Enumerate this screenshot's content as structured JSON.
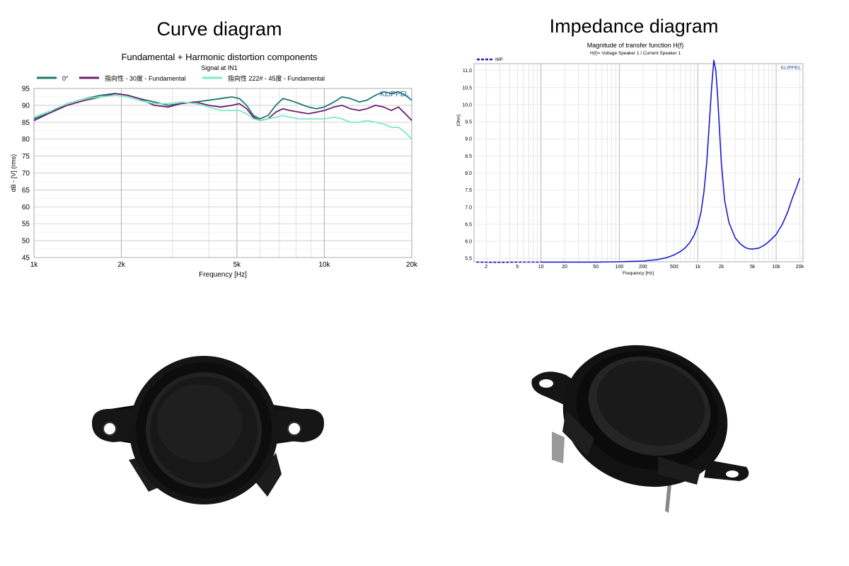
{
  "headings": {
    "left": "Curve diagram",
    "right": "Impedance diagram"
  },
  "chart_data": [
    {
      "type": "line",
      "title": "Fundamental + Harmonic distortion components",
      "subtitle": "Signal at IN1",
      "brand": "KLIPPEL",
      "xlabel": "Frequency [Hz]",
      "ylabel": "dB - [V] (rms)",
      "xscale": "log",
      "xlim": [
        1000,
        20000
      ],
      "ylim": [
        45,
        95
      ],
      "x_ticks": [
        1000,
        2000,
        5000,
        10000,
        20000
      ],
      "x_tick_labels": [
        "1k",
        "2k",
        "5k",
        "10k",
        "20k"
      ],
      "y_ticks": [
        45,
        50,
        55,
        60,
        65,
        70,
        75,
        80,
        85,
        90,
        95
      ],
      "y_tick_labels": [
        "45",
        "50",
        "55",
        "60",
        "65",
        "70",
        "75",
        "80",
        "85",
        "90",
        "95"
      ],
      "grid": true,
      "legend_position": "top",
      "series": [
        {
          "name": "0°",
          "color": "#1a7a6e",
          "x": [
            1000,
            1150,
            1300,
            1500,
            1700,
            1900,
            2100,
            2300,
            2600,
            2900,
            3200,
            3600,
            4000,
            4400,
            4800,
            5100,
            5400,
            5700,
            6000,
            6400,
            6800,
            7200,
            7600,
            8200,
            8800,
            9400,
            10000,
            10800,
            11500,
            12300,
            13200,
            14000,
            15000,
            16000,
            17000,
            18000,
            19000,
            20000
          ],
          "y": [
            86,
            88,
            90.5,
            92,
            93,
            93.5,
            93,
            92,
            91,
            90,
            90.5,
            91,
            91.5,
            92,
            92.5,
            92,
            90,
            87,
            86,
            87,
            90,
            92,
            91.5,
            90.5,
            89.5,
            89,
            89.5,
            91,
            92.5,
            92,
            91,
            91.5,
            93,
            94,
            93.5,
            94,
            93,
            91.5
          ]
        },
        {
          "name": "指向性 - 30度 - Fundamental",
          "color": "#6e1f70",
          "x": [
            1000,
            1150,
            1300,
            1500,
            1700,
            1900,
            2100,
            2300,
            2600,
            2900,
            3200,
            3600,
            4000,
            4400,
            4800,
            5100,
            5400,
            5700,
            6000,
            6400,
            6800,
            7200,
            7600,
            8200,
            8800,
            9400,
            10000,
            10800,
            11500,
            12300,
            13200,
            14000,
            15000,
            16000,
            17000,
            18000,
            19000,
            20000
          ],
          "y": [
            85.5,
            88,
            90,
            91.5,
            92.5,
            93.5,
            93,
            92,
            90,
            89.5,
            90.5,
            91,
            90,
            89.5,
            90,
            90.5,
            89,
            86.5,
            85.5,
            86,
            88,
            89,
            88.5,
            88,
            87.5,
            88,
            88.5,
            89.5,
            90,
            89,
            88.5,
            89,
            90,
            89.5,
            88.5,
            89.5,
            87.5,
            85.5
          ]
        },
        {
          "name": "指向性 222# - 45度 - Fundamental",
          "color": "#7fe8c8",
          "x": [
            1000,
            1150,
            1300,
            1500,
            1700,
            1900,
            2100,
            2300,
            2600,
            2900,
            3200,
            3600,
            4000,
            4400,
            4800,
            5100,
            5400,
            5700,
            6000,
            6400,
            6800,
            7200,
            7600,
            8200,
            8800,
            9400,
            10000,
            10800,
            11500,
            12300,
            13200,
            14000,
            15000,
            16000,
            17000,
            18000,
            19000,
            20000
          ],
          "y": [
            86.5,
            88.5,
            90.5,
            92,
            92.5,
            93,
            92.5,
            91.5,
            90.5,
            90.5,
            91,
            90.5,
            89.5,
            88.5,
            88.5,
            88.5,
            87.5,
            86,
            85.5,
            86,
            86.5,
            87,
            86.5,
            86,
            86,
            86,
            86,
            86.5,
            86,
            85,
            85,
            85.5,
            85,
            84.5,
            83.5,
            83.5,
            82,
            80
          ]
        }
      ]
    },
    {
      "type": "line",
      "title": "Magnitude of transfer function H(f)",
      "subtitle": "H(f)= Voltage Speaker 1 / Current Speaker 1",
      "brand": "KLIPPEL",
      "xlabel": "Frequency [Hz]",
      "ylabel": "[Ohm]",
      "xscale": "log",
      "xlim": [
        1.4,
        22000
      ],
      "ylim": [
        5.4,
        11.2
      ],
      "x_ticks": [
        2,
        5,
        10,
        20,
        50,
        100,
        200,
        500,
        1000,
        2000,
        5000,
        10000,
        20000
      ],
      "x_tick_labels": [
        "2",
        "5",
        "10",
        "20",
        "50",
        "100",
        "200",
        "500",
        "1k",
        "2k",
        "5k",
        "10k",
        "20k"
      ],
      "y_ticks": [
        5.5,
        6.0,
        6.5,
        7.0,
        7.5,
        8.0,
        8.5,
        9.0,
        9.5,
        10.0,
        10.5,
        11.0
      ],
      "y_tick_labels": [
        "5.5",
        "6.0",
        "6.5",
        "7.0",
        "7.5",
        "8.0",
        "8.5",
        "9.0",
        "9.5",
        "10.0",
        "10.5",
        "11.0"
      ],
      "grid": true,
      "legend_position": "top-left",
      "series": [
        {
          "name": "IMP",
          "color": "#1a1acc",
          "x": [
            1.5,
            3,
            5,
            10,
            20,
            50,
            100,
            200,
            300,
            400,
            500,
            600,
            700,
            800,
            900,
            1000,
            1100,
            1200,
            1300,
            1400,
            1500,
            1600,
            1700,
            1800,
            1900,
            2000,
            2200,
            2500,
            3000,
            3500,
            4000,
            4500,
            5000,
            6000,
            7000,
            8000,
            10000,
            12000,
            14000,
            16000,
            18000,
            20000
          ],
          "y": [
            5.39,
            5.38,
            5.39,
            5.39,
            5.39,
            5.39,
            5.4,
            5.42,
            5.46,
            5.52,
            5.6,
            5.7,
            5.82,
            5.98,
            6.18,
            6.45,
            6.85,
            7.45,
            8.3,
            9.4,
            10.5,
            11.3,
            11.0,
            10.2,
            9.2,
            8.3,
            7.2,
            6.55,
            6.1,
            5.92,
            5.82,
            5.78,
            5.77,
            5.8,
            5.88,
            5.98,
            6.2,
            6.5,
            6.85,
            7.25,
            7.55,
            7.85
          ]
        }
      ]
    }
  ]
}
